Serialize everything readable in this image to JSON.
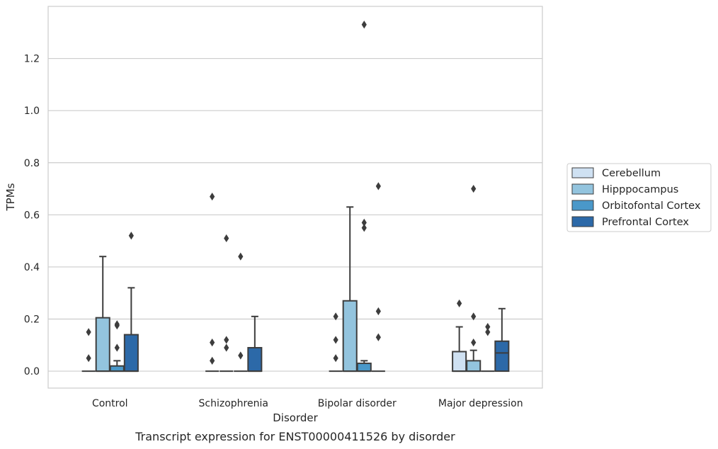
{
  "chart_data": {
    "type": "box",
    "title": "",
    "caption": "Transcript expression for ENST00000411526 by disorder",
    "xlabel": "Disorder",
    "ylabel": "TPMs",
    "ylim": [
      -0.065,
      1.4
    ],
    "yticks": [
      0.0,
      0.2,
      0.4,
      0.6,
      0.8,
      1.0,
      1.2
    ],
    "ytick_labels": [
      "0.0",
      "0.2",
      "0.4",
      "0.6",
      "0.8",
      "1.0",
      "1.2"
    ],
    "grid": "horizontal",
    "legend_position": "right",
    "categories": [
      "Control",
      "Schizophrenia",
      "Bipolar disorder",
      "Major depression"
    ],
    "series": [
      {
        "name": "Cerebellum",
        "color": "#cfe1f2",
        "boxes": [
          {
            "q1": 0,
            "median": 0,
            "q3": 0,
            "whisker_low": 0,
            "whisker_high": 0,
            "outliers": [
              0.05,
              0.15
            ]
          },
          {
            "q1": 0,
            "median": 0,
            "q3": 0,
            "whisker_low": 0,
            "whisker_high": 0,
            "outliers": [
              0.04,
              0.11,
              0.67
            ]
          },
          {
            "q1": 0,
            "median": 0,
            "q3": 0,
            "whisker_low": 0,
            "whisker_high": 0,
            "outliers": [
              0.05,
              0.12,
              0.21
            ]
          },
          {
            "q1": 0,
            "median": 0,
            "q3": 0.075,
            "whisker_low": 0,
            "whisker_high": 0.17,
            "outliers": [
              0.26
            ]
          }
        ]
      },
      {
        "name": "Hipppocampus",
        "color": "#93c4de",
        "boxes": [
          {
            "q1": 0,
            "median": 0,
            "q3": 0.205,
            "whisker_low": 0,
            "whisker_high": 0.44,
            "outliers": []
          },
          {
            "q1": 0,
            "median": 0,
            "q3": 0,
            "whisker_low": 0,
            "whisker_high": 0,
            "outliers": [
              0.09,
              0.12,
              0.51
            ]
          },
          {
            "q1": 0,
            "median": 0,
            "q3": 0.27,
            "whisker_low": 0,
            "whisker_high": 0.63,
            "outliers": []
          },
          {
            "q1": 0,
            "median": 0,
            "q3": 0.04,
            "whisker_low": 0,
            "whisker_high": 0.08,
            "outliers": [
              0.11,
              0.21,
              0.7
            ]
          }
        ]
      },
      {
        "name": "Orbitofontal Cortex",
        "color": "#4a98c9",
        "boxes": [
          {
            "q1": 0,
            "median": 0,
            "q3": 0.02,
            "whisker_low": 0,
            "whisker_high": 0.04,
            "outliers": [
              0.09,
              0.175,
              0.18
            ]
          },
          {
            "q1": 0,
            "median": 0,
            "q3": 0,
            "whisker_low": 0,
            "whisker_high": 0,
            "outliers": [
              0.06,
              0.44
            ]
          },
          {
            "q1": 0,
            "median": 0,
            "q3": 0.03,
            "whisker_low": 0,
            "whisker_high": 0.04,
            "outliers": [
              0.55,
              0.57,
              1.33
            ]
          },
          {
            "q1": 0,
            "median": 0,
            "q3": 0,
            "whisker_low": 0,
            "whisker_high": 0,
            "outliers": [
              0.15,
              0.17
            ]
          }
        ]
      },
      {
        "name": "Prefrontal Cortex",
        "color": "#2c69a8",
        "boxes": [
          {
            "q1": 0,
            "median": 0,
            "q3": 0.14,
            "whisker_low": 0,
            "whisker_high": 0.32,
            "outliers": [
              0.52
            ]
          },
          {
            "q1": 0,
            "median": 0,
            "q3": 0.09,
            "whisker_low": 0,
            "whisker_high": 0.21,
            "outliers": []
          },
          {
            "q1": 0,
            "median": 0,
            "q3": 0,
            "whisker_low": 0,
            "whisker_high": 0,
            "outliers": [
              0.13,
              0.23,
              0.71
            ]
          },
          {
            "q1": 0,
            "median": 0.07,
            "q3": 0.115,
            "whisker_low": 0,
            "whisker_high": 0.24,
            "outliers": []
          }
        ]
      }
    ]
  }
}
